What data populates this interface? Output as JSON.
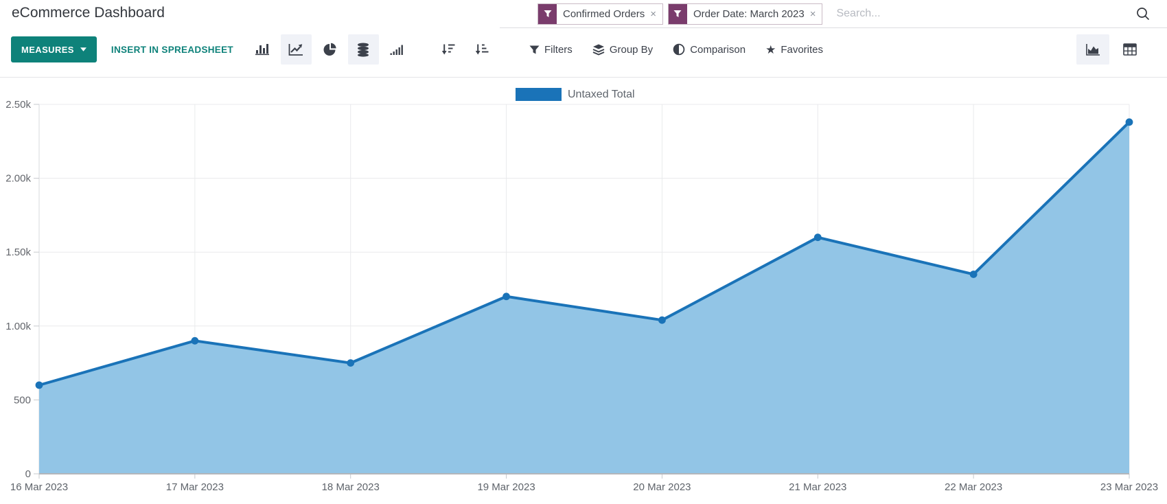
{
  "header": {
    "title": "eCommerce Dashboard",
    "search": {
      "facets": [
        {
          "label": "Confirmed Orders",
          "remove": "×"
        },
        {
          "label": "Order Date: March 2023",
          "remove": "×"
        }
      ],
      "placeholder": "Search..."
    }
  },
  "toolbar": {
    "measures_label": "MEASURES",
    "insert_spreadsheet_label": "INSERT IN SPREADSHEET",
    "filters_label": "Filters",
    "group_by_label": "Group By",
    "comparison_label": "Comparison",
    "favorites_label": "Favorites",
    "favorites_star": "★"
  },
  "chart_data": {
    "type": "area",
    "title": "",
    "x": [
      "16 Mar 2023",
      "17 Mar 2023",
      "18 Mar 2023",
      "19 Mar 2023",
      "20 Mar 2023",
      "21 Mar 2023",
      "22 Mar 2023",
      "23 Mar 2023"
    ],
    "series": [
      {
        "name": "Untaxed Total",
        "values": [
          600,
          900,
          750,
          1200,
          1040,
          1600,
          1350,
          2380
        ]
      }
    ],
    "ylim": [
      0,
      2500
    ],
    "yticks": [
      {
        "value": 0,
        "label": "0"
      },
      {
        "value": 500,
        "label": "500"
      },
      {
        "value": 1000,
        "label": "1.00k"
      },
      {
        "value": 1500,
        "label": "1.50k"
      },
      {
        "value": 2000,
        "label": "2.00k"
      },
      {
        "value": 2500,
        "label": "2.50k"
      }
    ],
    "grid": true,
    "legend_position": "top"
  },
  "colors": {
    "accent_teal": "#0e827a",
    "facet_purple": "#7a3c6c",
    "line": "#1a73b8",
    "fill": "#92c5e6",
    "grid_line": "#e9eaec",
    "axis_line": "#b3b6bb",
    "tick_mark": "#c6c9cd",
    "tick_text": "#63666c"
  }
}
